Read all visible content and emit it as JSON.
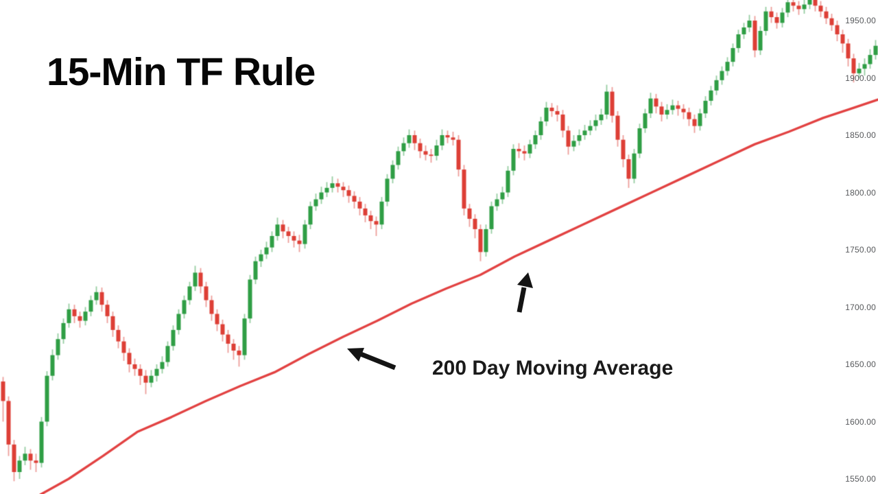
{
  "title": "15-Min TF Rule",
  "annotation": {
    "label": "200 Day Moving Average"
  },
  "colors": {
    "background": "#ffffff",
    "up": "#2f9e45",
    "down": "#dd3f36",
    "ma_line": "#e24242",
    "arrow": "#141414",
    "axis_text": "#55575a",
    "title_text": "#060606"
  },
  "chart_data": {
    "type": "candlestick",
    "title": "15-Min TF Rule",
    "overlay": {
      "name": "200 Day Moving Average",
      "color": "#e24242"
    },
    "grid": false,
    "legend": false,
    "y_axis": {
      "side": "right",
      "labels": [
        "1950.00",
        "1900.00",
        "1850.00",
        "1800.00",
        "1750.00",
        "1700.00",
        "1650.00",
        "1600.00",
        "1550.00"
      ],
      "values": [
        1950,
        1900,
        1850,
        1800,
        1750,
        1700,
        1650,
        1600,
        1550
      ],
      "visible_range": [
        1538,
        1970
      ]
    },
    "candles": [
      [
        1635,
        1639,
        1600,
        1618
      ],
      [
        1618,
        1622,
        1570,
        1580
      ],
      [
        1580,
        1584,
        1548,
        1556
      ],
      [
        1556,
        1570,
        1550,
        1566
      ],
      [
        1566,
        1578,
        1562,
        1572
      ],
      [
        1572,
        1576,
        1558,
        1566
      ],
      [
        1566,
        1572,
        1556,
        1564
      ],
      [
        1564,
        1604,
        1560,
        1600
      ],
      [
        1600,
        1644,
        1596,
        1640
      ],
      [
        1640,
        1663,
        1636,
        1658
      ],
      [
        1658,
        1677,
        1654,
        1672
      ],
      [
        1672,
        1690,
        1668,
        1686
      ],
      [
        1686,
        1703,
        1682,
        1698
      ],
      [
        1698,
        1702,
        1686,
        1692
      ],
      [
        1692,
        1696,
        1682,
        1688
      ],
      [
        1688,
        1700,
        1684,
        1696
      ],
      [
        1696,
        1710,
        1692,
        1706
      ],
      [
        1706,
        1718,
        1702,
        1713
      ],
      [
        1713,
        1717,
        1696,
        1702
      ],
      [
        1702,
        1706,
        1686,
        1692
      ],
      [
        1692,
        1696,
        1674,
        1680
      ],
      [
        1680,
        1684,
        1664,
        1670
      ],
      [
        1670,
        1674,
        1653,
        1660
      ],
      [
        1660,
        1664,
        1643,
        1650
      ],
      [
        1650,
        1655,
        1640,
        1646
      ],
      [
        1646,
        1650,
        1632,
        1640
      ],
      [
        1640,
        1645,
        1624,
        1634
      ],
      [
        1634,
        1645,
        1630,
        1640
      ],
      [
        1640,
        1650,
        1635,
        1646
      ],
      [
        1646,
        1657,
        1642,
        1652
      ],
      [
        1652,
        1670,
        1648,
        1666
      ],
      [
        1666,
        1684,
        1662,
        1680
      ],
      [
        1680,
        1698,
        1676,
        1694
      ],
      [
        1694,
        1710,
        1690,
        1706
      ],
      [
        1706,
        1722,
        1702,
        1718
      ],
      [
        1718,
        1736,
        1714,
        1730
      ],
      [
        1730,
        1734,
        1712,
        1718
      ],
      [
        1718,
        1722,
        1700,
        1706
      ],
      [
        1706,
        1710,
        1688,
        1694
      ],
      [
        1694,
        1698,
        1679,
        1685
      ],
      [
        1685,
        1689,
        1670,
        1676
      ],
      [
        1676,
        1680,
        1660,
        1668
      ],
      [
        1668,
        1672,
        1654,
        1662
      ],
      [
        1662,
        1666,
        1648,
        1658
      ],
      [
        1658,
        1694,
        1654,
        1690
      ],
      [
        1690,
        1728,
        1686,
        1724
      ],
      [
        1724,
        1744,
        1720,
        1740
      ],
      [
        1740,
        1750,
        1735,
        1746
      ],
      [
        1746,
        1757,
        1742,
        1752
      ],
      [
        1752,
        1766,
        1748,
        1762
      ],
      [
        1762,
        1778,
        1758,
        1772
      ],
      [
        1772,
        1776,
        1760,
        1766
      ],
      [
        1766,
        1770,
        1756,
        1762
      ],
      [
        1762,
        1766,
        1752,
        1758
      ],
      [
        1758,
        1763,
        1748,
        1755
      ],
      [
        1755,
        1776,
        1751,
        1772
      ],
      [
        1772,
        1792,
        1768,
        1788
      ],
      [
        1788,
        1799,
        1784,
        1794
      ],
      [
        1794,
        1805,
        1790,
        1800
      ],
      [
        1800,
        1809,
        1796,
        1804
      ],
      [
        1804,
        1814,
        1800,
        1808
      ],
      [
        1808,
        1812,
        1800,
        1805
      ],
      [
        1805,
        1809,
        1796,
        1802
      ],
      [
        1802,
        1806,
        1791,
        1797
      ],
      [
        1797,
        1801,
        1786,
        1792
      ],
      [
        1792,
        1796,
        1780,
        1786
      ],
      [
        1786,
        1790,
        1774,
        1780
      ],
      [
        1780,
        1784,
        1768,
        1775
      ],
      [
        1775,
        1779,
        1762,
        1772
      ],
      [
        1772,
        1796,
        1768,
        1792
      ],
      [
        1792,
        1816,
        1788,
        1812
      ],
      [
        1812,
        1828,
        1808,
        1824
      ],
      [
        1824,
        1840,
        1820,
        1836
      ],
      [
        1836,
        1848,
        1832,
        1843
      ],
      [
        1843,
        1855,
        1839,
        1850
      ],
      [
        1850,
        1854,
        1837,
        1843
      ],
      [
        1843,
        1847,
        1830,
        1836
      ],
      [
        1836,
        1841,
        1828,
        1833
      ],
      [
        1833,
        1838,
        1826,
        1832
      ],
      [
        1832,
        1846,
        1828,
        1841
      ],
      [
        1841,
        1855,
        1837,
        1850
      ],
      [
        1850,
        1854,
        1843,
        1848
      ],
      [
        1848,
        1853,
        1841,
        1846
      ],
      [
        1846,
        1850,
        1814,
        1820
      ],
      [
        1820,
        1824,
        1780,
        1786
      ],
      [
        1786,
        1790,
        1770,
        1777
      ],
      [
        1777,
        1781,
        1760,
        1768
      ],
      [
        1768,
        1772,
        1740,
        1748
      ],
      [
        1748,
        1772,
        1744,
        1768
      ],
      [
        1768,
        1792,
        1764,
        1788
      ],
      [
        1788,
        1799,
        1784,
        1794
      ],
      [
        1794,
        1805,
        1790,
        1800
      ],
      [
        1800,
        1823,
        1796,
        1819
      ],
      [
        1819,
        1842,
        1815,
        1838
      ],
      [
        1838,
        1843,
        1830,
        1836
      ],
      [
        1836,
        1841,
        1828,
        1834
      ],
      [
        1834,
        1846,
        1830,
        1842
      ],
      [
        1842,
        1854,
        1838,
        1850
      ],
      [
        1850,
        1866,
        1846,
        1862
      ],
      [
        1862,
        1879,
        1858,
        1874
      ],
      [
        1874,
        1878,
        1866,
        1871
      ],
      [
        1871,
        1876,
        1862,
        1868
      ],
      [
        1868,
        1872,
        1848,
        1854
      ],
      [
        1854,
        1858,
        1833,
        1840
      ],
      [
        1840,
        1850,
        1836,
        1845
      ],
      [
        1845,
        1855,
        1841,
        1850
      ],
      [
        1850,
        1859,
        1846,
        1854
      ],
      [
        1854,
        1863,
        1850,
        1858
      ],
      [
        1858,
        1868,
        1854,
        1863
      ],
      [
        1863,
        1873,
        1859,
        1868
      ],
      [
        1868,
        1894,
        1864,
        1888
      ],
      [
        1888,
        1892,
        1861,
        1867
      ],
      [
        1867,
        1871,
        1840,
        1846
      ],
      [
        1846,
        1850,
        1822,
        1829
      ],
      [
        1829,
        1833,
        1804,
        1812
      ],
      [
        1812,
        1838,
        1808,
        1834
      ],
      [
        1834,
        1860,
        1830,
        1856
      ],
      [
        1856,
        1873,
        1852,
        1869
      ],
      [
        1869,
        1887,
        1865,
        1882
      ],
      [
        1882,
        1886,
        1869,
        1875
      ],
      [
        1875,
        1879,
        1862,
        1868
      ],
      [
        1868,
        1877,
        1864,
        1872
      ],
      [
        1872,
        1881,
        1868,
        1876
      ],
      [
        1876,
        1880,
        1867,
        1873
      ],
      [
        1873,
        1877,
        1864,
        1870
      ],
      [
        1870,
        1874,
        1858,
        1864
      ],
      [
        1864,
        1868,
        1852,
        1858
      ],
      [
        1858,
        1873,
        1854,
        1869
      ],
      [
        1869,
        1884,
        1865,
        1880
      ],
      [
        1880,
        1893,
        1876,
        1889
      ],
      [
        1889,
        1902,
        1885,
        1898
      ],
      [
        1898,
        1910,
        1894,
        1906
      ],
      [
        1906,
        1918,
        1902,
        1914
      ],
      [
        1914,
        1930,
        1910,
        1926
      ],
      [
        1926,
        1942,
        1922,
        1938
      ],
      [
        1938,
        1948,
        1934,
        1944
      ],
      [
        1944,
        1955,
        1940,
        1950
      ],
      [
        1950,
        1954,
        1918,
        1924
      ],
      [
        1924,
        1945,
        1920,
        1941
      ],
      [
        1941,
        1962,
        1937,
        1958
      ],
      [
        1958,
        1962,
        1948,
        1953
      ],
      [
        1953,
        1957,
        1943,
        1948
      ],
      [
        1948,
        1961,
        1944,
        1957
      ],
      [
        1957,
        1970,
        1953,
        1966
      ],
      [
        1966,
        1970,
        1958,
        1963
      ],
      [
        1963,
        1967,
        1955,
        1960
      ],
      [
        1960,
        1968,
        1956,
        1964
      ],
      [
        1964,
        1972,
        1960,
        1968
      ],
      [
        1968,
        1972,
        1958,
        1963
      ],
      [
        1963,
        1967,
        1953,
        1958
      ],
      [
        1958,
        1962,
        1947,
        1952
      ],
      [
        1952,
        1956,
        1941,
        1946
      ],
      [
        1946,
        1950,
        1932,
        1938
      ],
      [
        1938,
        1942,
        1922,
        1930
      ],
      [
        1930,
        1934,
        1910,
        1917
      ],
      [
        1917,
        1921,
        1896,
        1904
      ],
      [
        1904,
        1913,
        1900,
        1908
      ],
      [
        1908,
        1917,
        1902,
        1912
      ],
      [
        1912,
        1925,
        1908,
        1920
      ],
      [
        1920,
        1933,
        1916,
        1928
      ]
    ],
    "ma_points": [
      [
        55,
        1535
      ],
      [
        100,
        1550
      ],
      [
        150,
        1570
      ],
      [
        200,
        1591
      ],
      [
        250,
        1604
      ],
      [
        300,
        1618
      ],
      [
        350,
        1631
      ],
      [
        400,
        1643
      ],
      [
        450,
        1659
      ],
      [
        500,
        1674
      ],
      [
        550,
        1688
      ],
      [
        600,
        1703
      ],
      [
        650,
        1716
      ],
      [
        700,
        1728
      ],
      [
        750,
        1744
      ],
      [
        800,
        1758
      ],
      [
        850,
        1772
      ],
      [
        900,
        1786
      ],
      [
        950,
        1800
      ],
      [
        1000,
        1814
      ],
      [
        1050,
        1828
      ],
      [
        1100,
        1842
      ],
      [
        1150,
        1853
      ],
      [
        1200,
        1865
      ],
      [
        1240,
        1873
      ],
      [
        1280,
        1881
      ]
    ]
  }
}
